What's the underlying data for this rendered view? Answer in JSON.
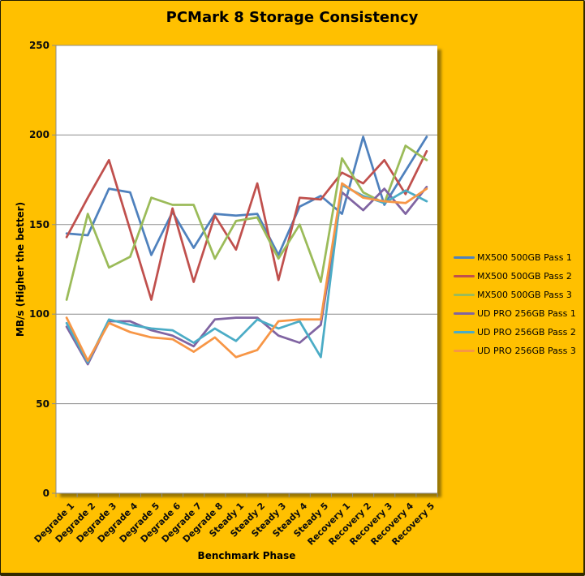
{
  "background_color": "#FFC000",
  "plot_background": "#FFFFFF",
  "gridline_color": "#8C8C8C",
  "chart_data": {
    "type": "line",
    "title": "PCMark 8 Storage Consistency",
    "xlabel": "Benchmark Phase",
    "ylabel": "MB/s (Higher the better)",
    "ylim": [
      0,
      250
    ],
    "yticks": [
      0,
      50,
      100,
      150,
      200,
      250
    ],
    "grid": "horizontal",
    "legend_position": "right",
    "categories": [
      "Degrade 1",
      "Degrade 2",
      "Degrade 3",
      "Degrade 4",
      "Degrade 5",
      "Degrade 6",
      "Degrade 7",
      "Degrade 8",
      "Steady 1",
      "Steady 2",
      "Steady 3",
      "Steady 4",
      "Steady 5",
      "Recovery 1",
      "Recovery 2",
      "Recovery 3",
      "Recovery 4",
      "Recovery 5"
    ],
    "series": [
      {
        "name": "MX500 500GB Pass 1",
        "color": "#4F81BD",
        "values": [
          145,
          144,
          170,
          168,
          133,
          157,
          137,
          156,
          155,
          156,
          133,
          160,
          166,
          156,
          199,
          161,
          180,
          199
        ]
      },
      {
        "name": "MX500 500GB Pass 2",
        "color": "#C0504D",
        "values": [
          143,
          165,
          186,
          147,
          108,
          159,
          118,
          155,
          136,
          173,
          119,
          165,
          164,
          179,
          173,
          186,
          167,
          191
        ]
      },
      {
        "name": "MX500 500GB Pass 3",
        "color": "#9BBB59",
        "values": [
          108,
          156,
          126,
          132,
          165,
          161,
          161,
          131,
          152,
          154,
          131,
          150,
          118,
          187,
          168,
          162,
          194,
          186
        ]
      },
      {
        "name": "UD PRO 256GB Pass 1",
        "color": "#8064A2",
        "values": [
          93,
          72,
          96,
          96,
          91,
          88,
          82,
          97,
          98,
          98,
          88,
          84,
          94,
          168,
          158,
          170,
          156,
          171
        ]
      },
      {
        "name": "UD PRO 256GB Pass 2",
        "color": "#4BACC6",
        "values": [
          95,
          73,
          97,
          94,
          92,
          91,
          84,
          92,
          85,
          97,
          92,
          96,
          76,
          172,
          166,
          162,
          169,
          163
        ]
      },
      {
        "name": "UD PRO 256GB Pass 3",
        "color": "#F79646",
        "values": [
          98,
          74,
          95,
          90,
          87,
          86,
          79,
          87,
          76,
          80,
          96,
          97,
          97,
          173,
          165,
          163,
          162,
          170
        ]
      }
    ]
  }
}
